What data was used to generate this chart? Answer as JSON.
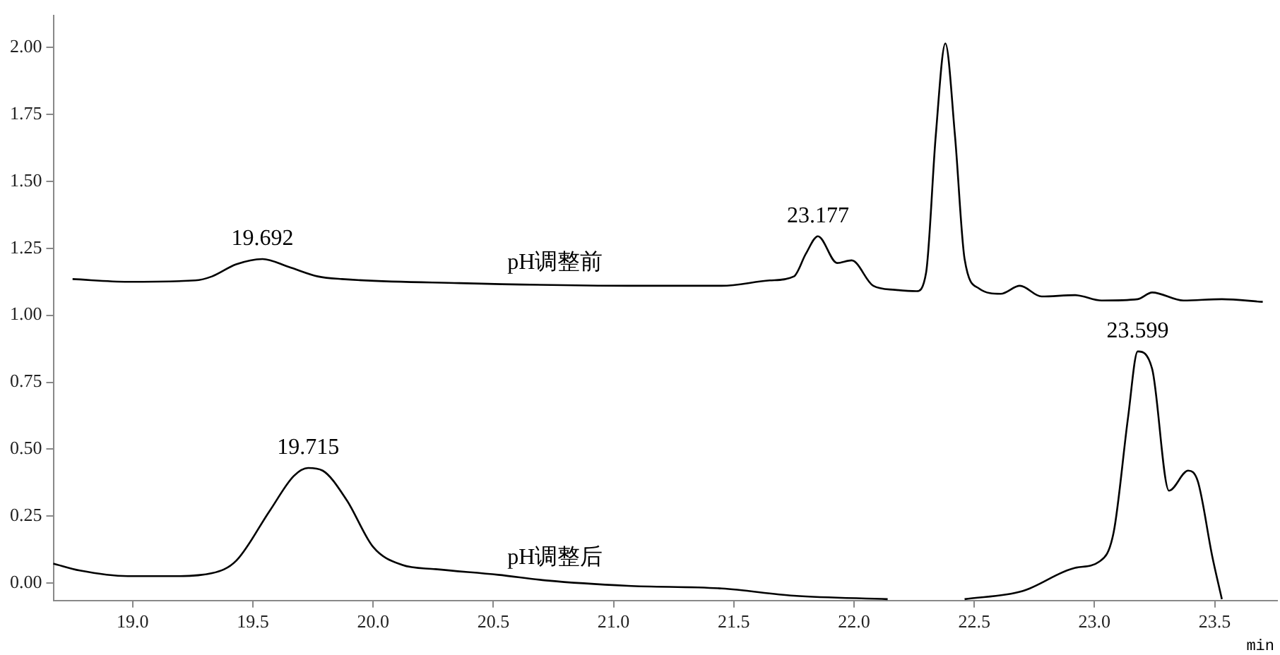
{
  "chart_data": {
    "type": "line",
    "xlabel": "min",
    "marker": "none",
    "line_style": "solid",
    "grid": false,
    "legend": false,
    "xlim": [
      18.67,
      23.76
    ],
    "ylim": [
      -0.065,
      2.12
    ],
    "xticks": [
      {
        "value": 19.0,
        "label": "19.0"
      },
      {
        "value": 19.5,
        "label": "19.5"
      },
      {
        "value": 20.0,
        "label": "20.0"
      },
      {
        "value": 20.5,
        "label": "20.5"
      },
      {
        "value": 21.0,
        "label": "21.0"
      },
      {
        "value": 21.5,
        "label": "21.5"
      },
      {
        "value": 22.0,
        "label": "22.0"
      },
      {
        "value": 22.5,
        "label": "22.5"
      },
      {
        "value": 23.0,
        "label": "23.0"
      },
      {
        "value": 23.5,
        "label": "23.5"
      }
    ],
    "yticks": [
      {
        "value": 0,
        "label": "0.00"
      },
      {
        "value": 0.25,
        "label": "0.25"
      },
      {
        "value": 0.5,
        "label": "0.50"
      },
      {
        "value": 0.75,
        "label": "0.75"
      },
      {
        "value": 1,
        "label": "1.00"
      },
      {
        "value": 1.25,
        "label": "1.25"
      },
      {
        "value": 1.5,
        "label": "1.50"
      },
      {
        "value": 1.75,
        "label": "1.75"
      },
      {
        "value": 2,
        "label": "2.00"
      }
    ],
    "series": [
      {
        "name": "pH调整前",
        "color": "#000000",
        "x": [
          18.75,
          18.98,
          19.26,
          19.33,
          19.43,
          19.54,
          19.65,
          19.77,
          19.87,
          20.36,
          21.06,
          21.45,
          21.65,
          21.75,
          21.8,
          21.85,
          21.93,
          21.99,
          22.08,
          22.17,
          22.26,
          22.3,
          22.34,
          22.38,
          22.42,
          22.46,
          22.52,
          22.61,
          22.69,
          22.78,
          22.92,
          23.03,
          23.18,
          23.24,
          23.37,
          23.53,
          23.7
        ],
        "values": [
          1.135,
          1.125,
          1.13,
          1.145,
          1.19,
          1.21,
          1.18,
          1.145,
          1.135,
          1.12,
          1.11,
          1.11,
          1.13,
          1.145,
          1.23,
          1.295,
          1.195,
          1.205,
          1.11,
          1.095,
          1.09,
          1.16,
          1.67,
          2.015,
          1.67,
          1.21,
          1.1,
          1.08,
          1.11,
          1.07,
          1.075,
          1.055,
          1.06,
          1.085,
          1.055,
          1.06,
          1.05
        ]
      },
      {
        "name": "pH调整后",
        "color": "#000000",
        "x": [
          18.67,
          18.78,
          18.98,
          19.17,
          19.33,
          19.43,
          19.57,
          19.67,
          19.73,
          19.79,
          19.89,
          20.0,
          20.12,
          20.26,
          20.52,
          20.72,
          21.06,
          21.45,
          21.75,
          22.14,
          22.3,
          22.46,
          22.7,
          22.92,
          23.02,
          23.08,
          23.14,
          23.18,
          23.24,
          23.31,
          23.39,
          23.43,
          23.49,
          23.53
        ],
        "values": [
          0.073,
          0.047,
          0.026,
          0.026,
          0.037,
          0.083,
          0.27,
          0.4,
          0.43,
          0.42,
          0.31,
          0.135,
          0.068,
          0.052,
          0.031,
          0.01,
          -0.01,
          -0.02,
          -0.047,
          -0.06,
          null,
          -0.06,
          -0.03,
          0.057,
          0.08,
          0.19,
          0.62,
          0.865,
          0.8,
          0.345,
          0.42,
          0.38,
          0.1,
          -0.06
        ]
      }
    ],
    "annotations": [
      {
        "text": "19.692",
        "x": 19.54,
        "y": 1.21
      },
      {
        "text": "23.177",
        "x": 21.85,
        "y": 1.295
      },
      {
        "text": "19.715",
        "x": 19.73,
        "y": 0.43
      },
      {
        "text": "23.599",
        "x": 23.18,
        "y": 0.865
      }
    ]
  }
}
